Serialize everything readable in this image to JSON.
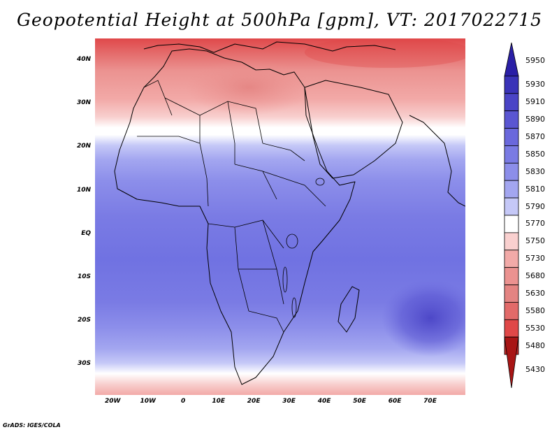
{
  "title": "Geopotential Height at 500hPa [gpm], VT: 2017022715",
  "credit": "GrADS: IGES/COLA",
  "map": {
    "lon_range": [
      -25,
      80
    ],
    "lat_range": [
      -37,
      45
    ],
    "lat_ticks": [
      {
        "value": 40,
        "label": "40N"
      },
      {
        "value": 30,
        "label": "30N"
      },
      {
        "value": 20,
        "label": "20N"
      },
      {
        "value": 10,
        "label": "10N"
      },
      {
        "value": 0,
        "label": "EQ"
      },
      {
        "value": -10,
        "label": "10S"
      },
      {
        "value": -20,
        "label": "20S"
      },
      {
        "value": -30,
        "label": "30S"
      }
    ],
    "lon_ticks": [
      {
        "value": -20,
        "label": "20W"
      },
      {
        "value": -10,
        "label": "10W"
      },
      {
        "value": 0,
        "label": "0"
      },
      {
        "value": 10,
        "label": "10E"
      },
      {
        "value": 20,
        "label": "20E"
      },
      {
        "value": 30,
        "label": "30E"
      },
      {
        "value": 40,
        "label": "40E"
      },
      {
        "value": 50,
        "label": "50E"
      },
      {
        "value": 60,
        "label": "60E"
      },
      {
        "value": 70,
        "label": "70E"
      }
    ]
  },
  "legend": {
    "levels": [
      "5950",
      "5930",
      "5910",
      "5890",
      "5870",
      "5850",
      "5830",
      "5810",
      "5790",
      "5770",
      "5750",
      "5730",
      "5680",
      "5630",
      "5580",
      "5530",
      "5480",
      "5430"
    ],
    "colors": [
      "#2a1fa6",
      "#3a33b8",
      "#4a44c6",
      "#5a56d2",
      "#6a68dc",
      "#7a7be4",
      "#8c8eea",
      "#a3a6f0",
      "#c5c8f7",
      "#ffffff",
      "#f9d0cf",
      "#f2aaa8",
      "#eb9290",
      "#e48482",
      "#e26a69",
      "#e04848",
      "#c72828",
      "#a81515"
    ]
  }
}
